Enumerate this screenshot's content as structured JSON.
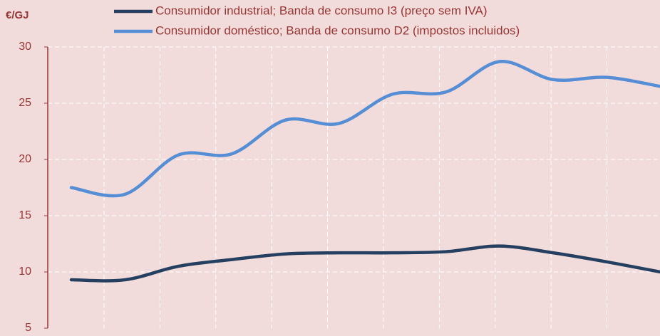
{
  "chart_data": {
    "type": "line",
    "y_label": "€/GJ",
    "categories": [
      null,
      null,
      null,
      null,
      null,
      null,
      null,
      null,
      null,
      null,
      null,
      null
    ],
    "series": [
      {
        "name": "Consumidor industrial; Banda de consumo I3 (preço sem IVA)",
        "color": "#243f60",
        "values": [
          9.3,
          9.3,
          10.5,
          11.1,
          11.6,
          11.7,
          11.7,
          11.8,
          12.3,
          11.7,
          10.9,
          10.0
        ]
      },
      {
        "name": "Consumidor doméstico; Banda de consumo D2 (impostos incluidos)",
        "color": "#558ed5",
        "values": [
          17.5,
          16.9,
          20.4,
          20.5,
          23.5,
          23.2,
          25.8,
          26.0,
          28.7,
          27.1,
          27.3,
          26.5
        ]
      }
    ],
    "ylim": [
      5,
      30
    ],
    "yticks": [
      5,
      10,
      15,
      20,
      25,
      30
    ],
    "grid": true,
    "legend": "top"
  }
}
